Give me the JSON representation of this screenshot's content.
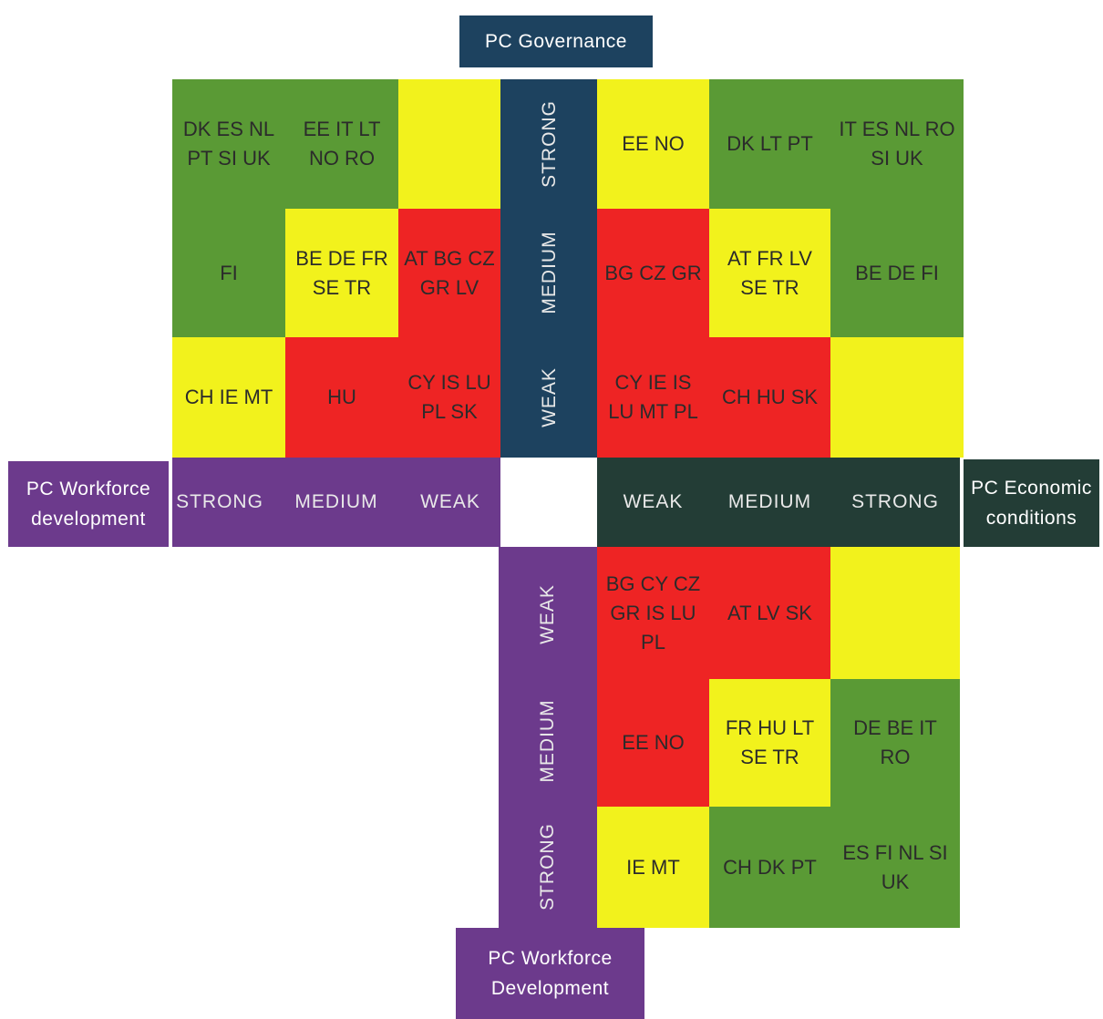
{
  "titles": {
    "governance": "PC Governance",
    "workforce_left_line1": "PC Workforce",
    "workforce_left_line2": "development",
    "economic_line1": "PC Economic",
    "economic_line2": "conditions",
    "workforce_bottom_line1": "PC Workforce",
    "workforce_bottom_line2": "Development"
  },
  "levels": {
    "strong": "STRONG",
    "medium": "MEDIUM",
    "weak": "WEAK"
  },
  "top_left": {
    "r1c1": "DK ES NL PT SI UK",
    "r1c2": "EE IT LT NO RO",
    "r1c3": "",
    "r2c1": "FI",
    "r2c2": "BE DE FR SE TR",
    "r2c3": "AT BG CZ GR LV",
    "r3c1": "CH IE MT",
    "r3c2": "HU",
    "r3c3": "CY IS LU PL SK"
  },
  "top_right": {
    "r1c1": "EE NO",
    "r1c2": "DK LT PT",
    "r1c3": "IT ES NL RO SI UK",
    "r2c1": "BG CZ GR",
    "r2c2": "AT FR LV SE TR",
    "r2c3": "BE DE FI",
    "r3c1": "CY IE IS LU MT PL",
    "r3c2": "CH HU SK",
    "r3c3": ""
  },
  "bottom_right": {
    "r1c1": "BG CY CZ GR IS LU PL",
    "r1c2": "AT LV SK",
    "r1c3": "",
    "r2c1": "EE NO",
    "r2c2": "FR HU LT SE TR",
    "r2c3": "DE BE IT RO",
    "r3c1": "IE MT",
    "r3c2": "CH DK PT",
    "r3c3": "ES FI NL SI UK"
  },
  "colors": {
    "green": "#5a9a35",
    "yellow": "#f2f21c",
    "red": "#ee2424",
    "navy": "#1d425f",
    "purple": "#6c3a8c",
    "dark_green": "#233d36"
  }
}
